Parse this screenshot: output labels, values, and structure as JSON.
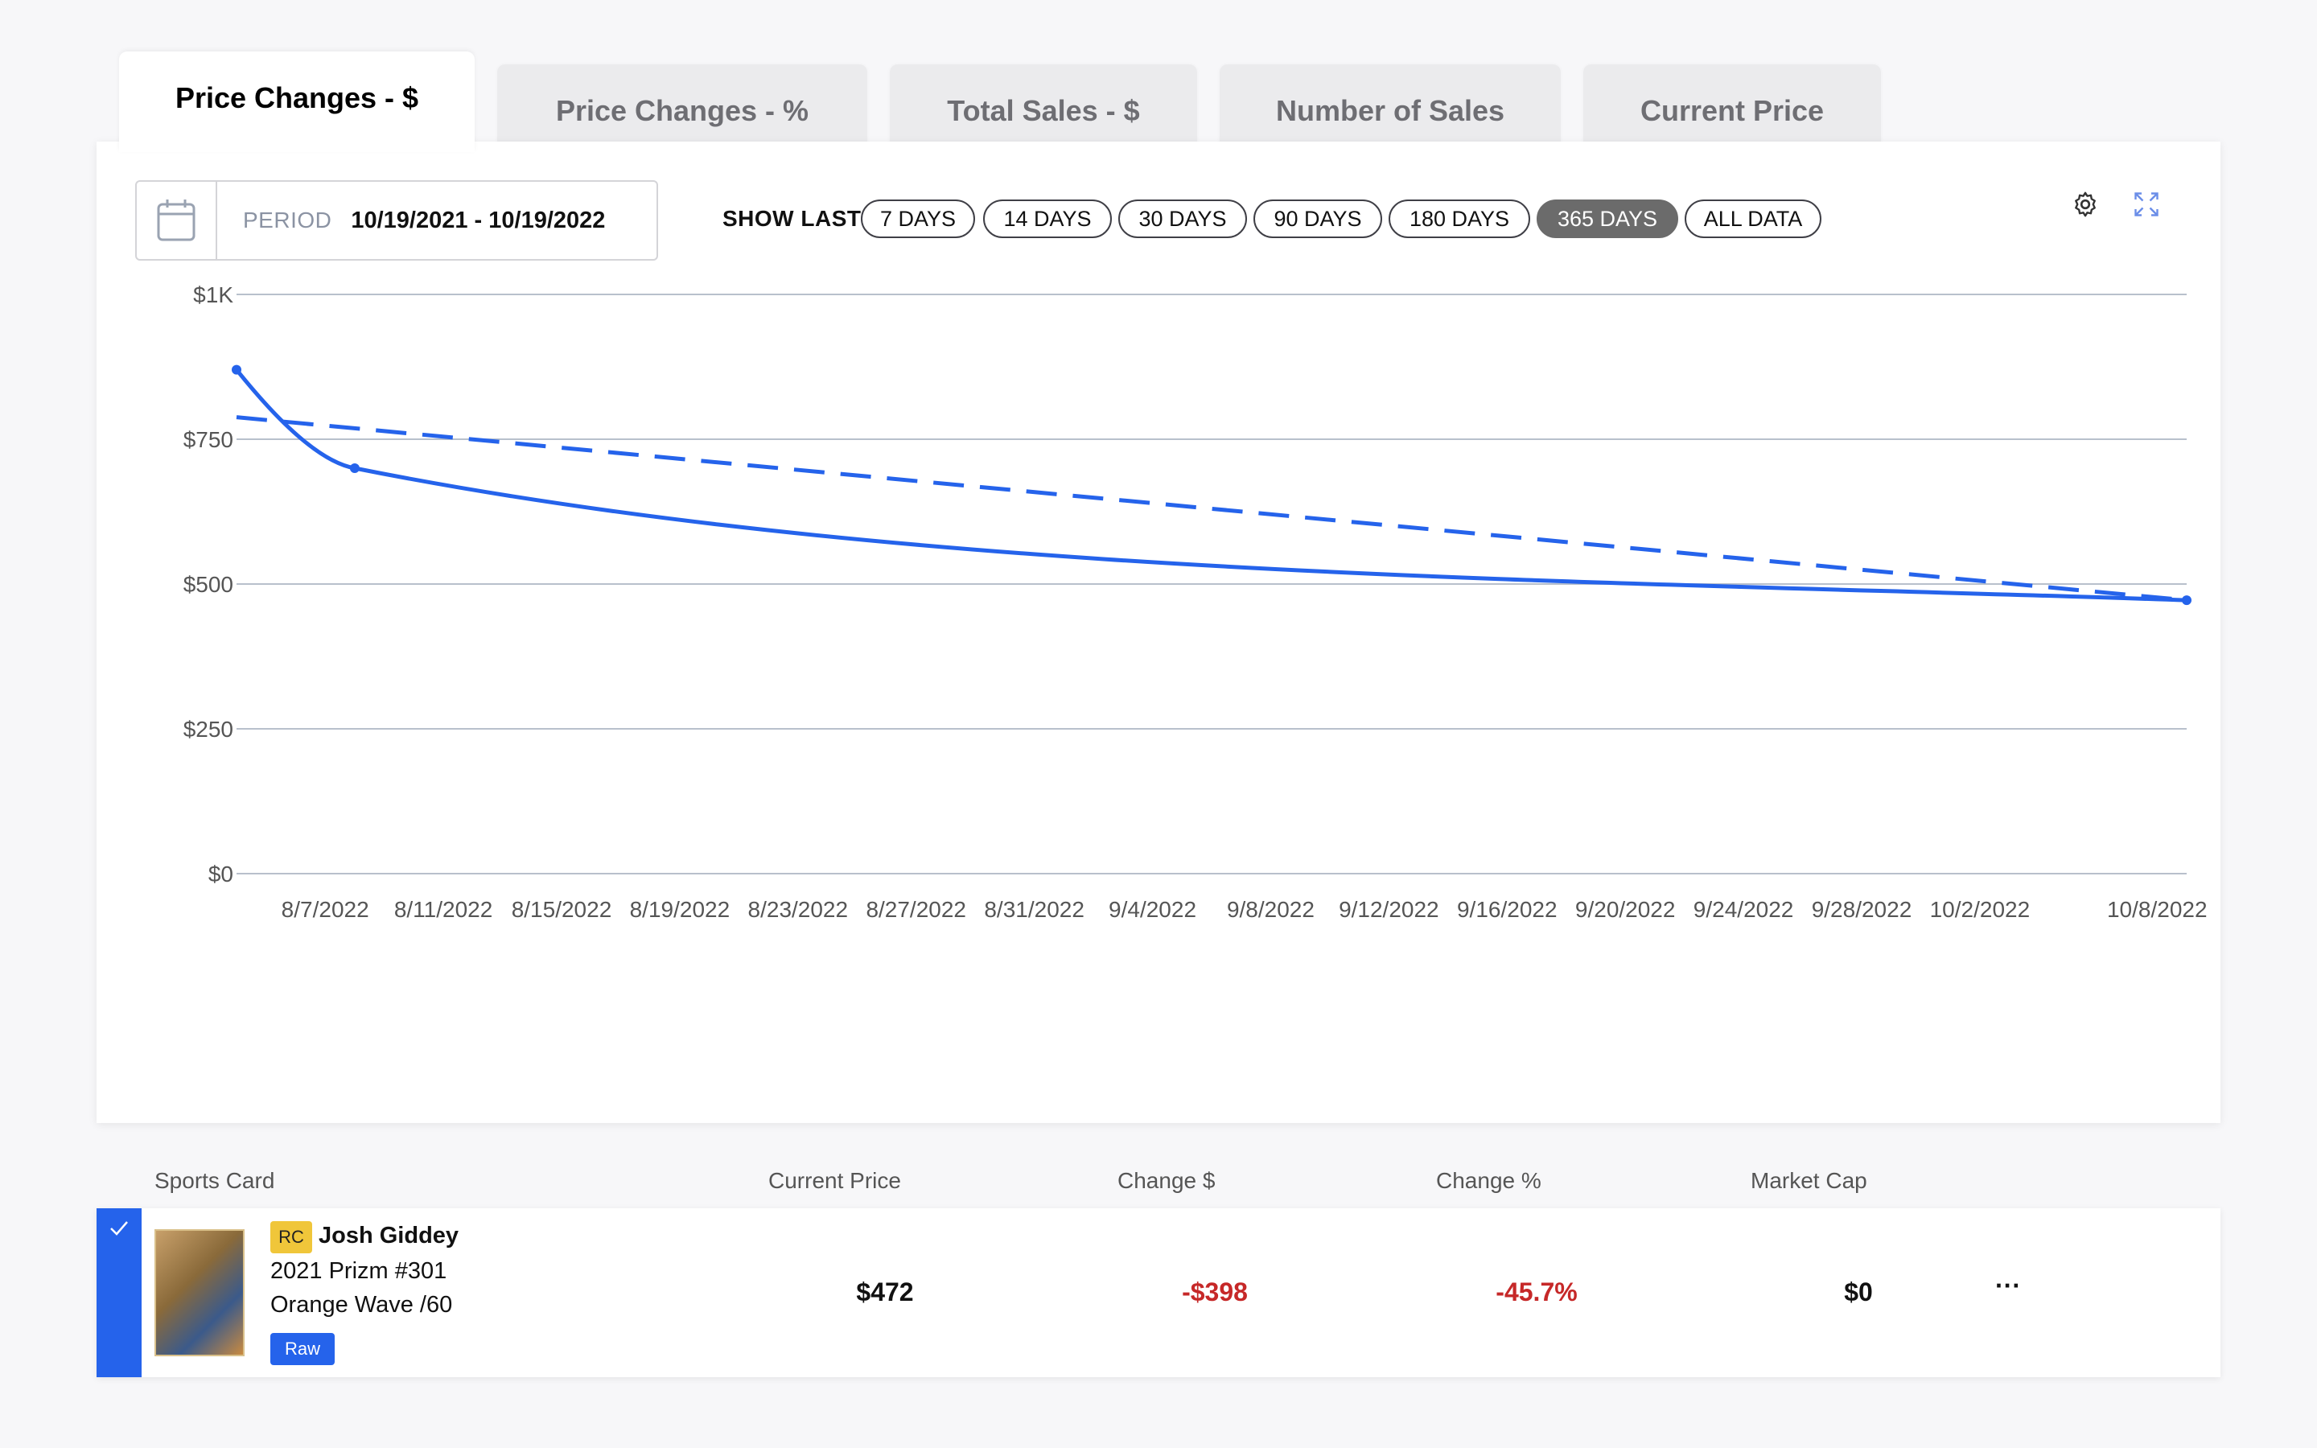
{
  "tabs": [
    {
      "label": "Price Changes - $",
      "active": true
    },
    {
      "label": "Price Changes - %",
      "active": false
    },
    {
      "label": "Total Sales - $",
      "active": false
    },
    {
      "label": "Number of Sales",
      "active": false
    },
    {
      "label": "Current Price",
      "active": false
    }
  ],
  "period": {
    "label": "PERIOD",
    "value": "10/19/2021 - 10/19/2022"
  },
  "show_last": {
    "label": "SHOW LAST",
    "options": [
      "7 DAYS",
      "14 DAYS",
      "30 DAYS",
      "90 DAYS",
      "180 DAYS",
      "365 DAYS",
      "ALL DATA"
    ],
    "selected": "365 DAYS"
  },
  "icons": {
    "gear": "gear-icon",
    "expand": "expand-icon",
    "calendar": "calendar-icon",
    "check": "check-icon"
  },
  "colors": {
    "accent": "#2563eb",
    "negative": "#c62828",
    "rc_badge": "#f0c63a"
  },
  "chart_data": {
    "type": "line",
    "x_tick_labels": [
      "8/7/2022",
      "8/11/2022",
      "8/15/2022",
      "8/19/2022",
      "8/23/2022",
      "8/27/2022",
      "8/31/2022",
      "9/4/2022",
      "9/8/2022",
      "9/12/2022",
      "9/16/2022",
      "9/20/2022",
      "9/24/2022",
      "9/28/2022",
      "10/2/2022",
      "10/8/2022"
    ],
    "y_tick_labels": [
      "$0",
      "$250",
      "$500",
      "$750",
      "$1K"
    ],
    "y_ticks": [
      0,
      250,
      500,
      750,
      1000
    ],
    "ylim": [
      0,
      1000
    ],
    "xlim": [
      "2022-08-04",
      "2022-10-09"
    ],
    "grid": true,
    "series": [
      {
        "style": "solid",
        "points": [
          {
            "x": "2022-08-04",
            "y": 870
          },
          {
            "x": "2022-08-08",
            "y": 700
          },
          {
            "x": "2022-10-09",
            "y": 472
          }
        ]
      },
      {
        "style": "dashed",
        "points": [
          {
            "x": "2022-08-04",
            "y": 788
          },
          {
            "x": "2022-10-09",
            "y": 472
          }
        ]
      }
    ]
  },
  "table": {
    "headers": {
      "card": "Sports Card",
      "price": "Current Price",
      "change_usd": "Change $",
      "change_pct": "Change %",
      "market_cap": "Market Cap"
    },
    "rows": [
      {
        "badge": "RC",
        "name": "Josh Giddey",
        "line2": "2021 Prizm #301",
        "line3": "Orange Wave /60",
        "grade": "Raw",
        "price": "$472",
        "change_usd": "-$398",
        "change_pct": "-45.7%",
        "market_cap": "$0",
        "more": "···"
      }
    ]
  }
}
